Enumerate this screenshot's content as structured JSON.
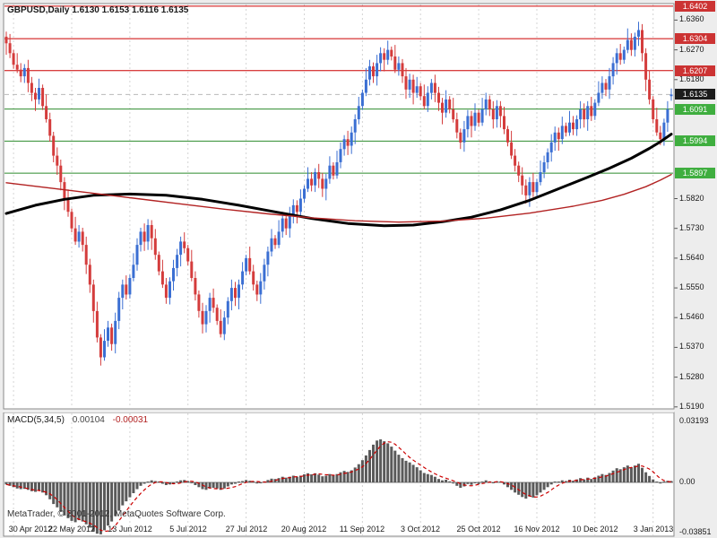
{
  "header": {
    "title": "GBPUSD,Daily 1.6130 1.6153 1.6116 1.6135"
  },
  "footer": {
    "watermark": "MetaTrader, © 2001-2012, MetaQuotes Software Corp."
  },
  "colors": {
    "bull": "#3b6fd3",
    "bear": "#d43c3c",
    "resistance": "#cc0000",
    "support": "#2e8b2e",
    "res_label_bg": "#cc3333",
    "sup_label_bg": "#3fae3f",
    "current_label_bg": "#1c1c1c",
    "ma_thick": "#000000",
    "ma_thin": "#b22222",
    "grid": "#d4d4d4",
    "histogram": "#5a5a5a",
    "signal": "#cc0000",
    "axis_text": "#1a1a1a",
    "panel_bg": "#ffffff",
    "window_bg": "#ededed",
    "frame": "#8a8a8a",
    "bid_line": "#b9b9b9"
  },
  "chart_data": [
    {
      "type": "candlestick",
      "title": "GBPUSD,Daily 1.6130 1.6153 1.6116 1.6135",
      "symbol": "GBPUSD",
      "timeframe": "Daily",
      "ohlc_current": {
        "open": 1.613,
        "high": 1.6153,
        "low": 1.6116,
        "close": 1.6135
      },
      "ylim": [
        1.5184,
        1.641
      ],
      "first_open": 1.631,
      "wick_pattern": [
        0.0015,
        0.0028,
        0.001,
        0.0035,
        0.002,
        0.0012,
        0.0025,
        0.0018
      ],
      "closes": [
        1.629,
        1.626,
        1.6225,
        1.621,
        1.619,
        1.6215,
        1.617,
        1.614,
        1.612,
        1.6155,
        1.61,
        1.606,
        1.601,
        1.595,
        1.592,
        1.587,
        1.582,
        1.578,
        1.573,
        1.569,
        1.572,
        1.568,
        1.562,
        1.556,
        1.548,
        1.54,
        1.534,
        1.539,
        1.543,
        1.538,
        1.545,
        1.552,
        1.556,
        1.553,
        1.558,
        1.562,
        1.568,
        1.572,
        1.569,
        1.574,
        1.57,
        1.565,
        1.56,
        1.556,
        1.552,
        1.557,
        1.561,
        1.565,
        1.569,
        1.567,
        1.563,
        1.558,
        1.553,
        1.548,
        1.544,
        1.548,
        1.552,
        1.549,
        1.545,
        1.541,
        1.546,
        1.551,
        1.555,
        1.552,
        1.556,
        1.56,
        1.564,
        1.56,
        1.556,
        1.553,
        1.557,
        1.562,
        1.566,
        1.57,
        1.568,
        1.572,
        1.576,
        1.573,
        1.577,
        1.58,
        1.578,
        1.582,
        1.585,
        1.588,
        1.586,
        1.59,
        1.588,
        1.585,
        1.588,
        1.592,
        1.589,
        1.593,
        1.597,
        1.6,
        1.598,
        1.602,
        1.606,
        1.61,
        1.614,
        1.618,
        1.622,
        1.619,
        1.623,
        1.626,
        1.624,
        1.627,
        1.625,
        1.621,
        1.623,
        1.619,
        1.615,
        1.618,
        1.614,
        1.616,
        1.613,
        1.61,
        1.614,
        1.617,
        1.614,
        1.611,
        1.608,
        1.612,
        1.609,
        1.606,
        1.602,
        1.599,
        1.603,
        1.607,
        1.604,
        1.608,
        1.605,
        1.609,
        1.612,
        1.609,
        1.606,
        1.61,
        1.607,
        1.603,
        1.599,
        1.595,
        1.592,
        1.589,
        1.586,
        1.583,
        1.587,
        1.584,
        1.587,
        1.59,
        1.593,
        1.596,
        1.599,
        1.602,
        1.6,
        1.604,
        1.602,
        1.605,
        1.603,
        1.606,
        1.609,
        1.606,
        1.61,
        1.607,
        1.611,
        1.614,
        1.617,
        1.615,
        1.619,
        1.623,
        1.626,
        1.624,
        1.627,
        1.63,
        1.627,
        1.631,
        1.633,
        1.626,
        1.618,
        1.612,
        1.606,
        1.602,
        1.6,
        1.605,
        1.609,
        1.6135
      ],
      "overrides": {
        "26": {
          "l": 1.5315
        },
        "174": {
          "h": 1.6355
        },
        "183": {
          "o": 1.613,
          "h": 1.6153,
          "l": 1.6116,
          "c": 1.6135
        }
      },
      "y_ticks": [
        {
          "v": 1.636,
          "label": "1.6360"
        },
        {
          "v": 1.627,
          "label": "1.6270"
        },
        {
          "v": 1.618,
          "label": "1.6180"
        },
        {
          "v": 1.582,
          "label": "1.5820"
        },
        {
          "v": 1.573,
          "label": "1.5730"
        },
        {
          "v": 1.564,
          "label": "1.5640"
        },
        {
          "v": 1.555,
          "label": "1.5550"
        },
        {
          "v": 1.546,
          "label": "1.5460"
        },
        {
          "v": 1.537,
          "label": "1.5370"
        },
        {
          "v": 1.528,
          "label": "1.5280"
        },
        {
          "v": 1.519,
          "label": "1.5190"
        }
      ],
      "x_labels": [
        {
          "i": 2,
          "label": "30 Apr 2012"
        },
        {
          "i": 18,
          "label": "22 May 2012"
        },
        {
          "i": 34,
          "label": "13 Jun 2012"
        },
        {
          "i": 50,
          "label": "5 Jul 2012"
        },
        {
          "i": 66,
          "label": "27 Jul 2012"
        },
        {
          "i": 82,
          "label": "20 Aug 2012"
        },
        {
          "i": 98,
          "label": "11 Sep 2012"
        },
        {
          "i": 114,
          "label": "3 Oct 2012"
        },
        {
          "i": 130,
          "label": "25 Oct 2012"
        },
        {
          "i": 146,
          "label": "16 Nov 2012"
        },
        {
          "i": 162,
          "label": "10 Dec 2012"
        },
        {
          "i": 178,
          "label": "3 Jan 2013"
        }
      ],
      "levels": {
        "resistance": [
          {
            "v": 1.6402,
            "label": "1.6402"
          },
          {
            "v": 1.6304,
            "label": "1.6304"
          },
          {
            "v": 1.6207,
            "label": "1.6207"
          }
        ],
        "support": [
          {
            "v": 1.6091,
            "label": "1.6091"
          },
          {
            "v": 1.5994,
            "label": "1.5994"
          },
          {
            "v": 1.5897,
            "label": "1.5897"
          }
        ],
        "current": {
          "v": 1.6135,
          "label": "1.6135"
        }
      },
      "moving_averages": [
        {
          "name": "ma-thick-black",
          "width": 3,
          "color_key": "ma_thick",
          "points": [
            [
              0,
              1.5775
            ],
            [
              8,
              1.58
            ],
            [
              16,
              1.5818
            ],
            [
              24,
              1.583
            ],
            [
              34,
              1.5834
            ],
            [
              44,
              1.583
            ],
            [
              54,
              1.5818
            ],
            [
              64,
              1.58
            ],
            [
              74,
              1.578
            ],
            [
              84,
              1.576
            ],
            [
              94,
              1.5745
            ],
            [
              104,
              1.5738
            ],
            [
              112,
              1.574
            ],
            [
              120,
              1.575
            ],
            [
              128,
              1.5764
            ],
            [
              136,
              1.5786
            ],
            [
              144,
              1.5815
            ],
            [
              152,
              1.585
            ],
            [
              160,
              1.5885
            ],
            [
              166,
              1.5912
            ],
            [
              172,
              1.5942
            ],
            [
              177,
              1.5972
            ],
            [
              180,
              1.5992
            ],
            [
              183,
              1.6015
            ]
          ]
        },
        {
          "name": "ma-thin-red",
          "width": 1.4,
          "color_key": "ma_thin",
          "points": [
            [
              0,
              1.5868
            ],
            [
              12,
              1.5852
            ],
            [
              24,
              1.5836
            ],
            [
              36,
              1.582
            ],
            [
              48,
              1.5804
            ],
            [
              60,
              1.5788
            ],
            [
              72,
              1.5774
            ],
            [
              84,
              1.5762
            ],
            [
              96,
              1.5753
            ],
            [
              108,
              1.5749
            ],
            [
              120,
              1.5752
            ],
            [
              132,
              1.5761
            ],
            [
              144,
              1.5776
            ],
            [
              156,
              1.5797
            ],
            [
              164,
              1.5815
            ],
            [
              170,
              1.5833
            ],
            [
              176,
              1.5856
            ],
            [
              180,
              1.5876
            ],
            [
              183,
              1.5893
            ]
          ]
        }
      ]
    },
    {
      "type": "bar",
      "name": "MACD(5,34,5)",
      "value_main": "0.00104",
      "value_signal": "-0.00031",
      "signal_period": 5,
      "ylim": [
        -0.03851,
        0.03193
      ],
      "scale_labels": [
        {
          "v": 0.03193,
          "label": "0.03193"
        },
        {
          "v": 0.0,
          "label": "0.00"
        },
        {
          "v": -0.03851,
          "label": "-0.03851"
        }
      ],
      "values": [
        -0.0015,
        -0.0025,
        -0.0035,
        -0.0045,
        -0.005,
        -0.0048,
        -0.0055,
        -0.0065,
        -0.007,
        -0.006,
        -0.0075,
        -0.0095,
        -0.0125,
        -0.016,
        -0.0185,
        -0.0215,
        -0.0245,
        -0.0265,
        -0.0285,
        -0.0295,
        -0.028,
        -0.029,
        -0.031,
        -0.0335,
        -0.036,
        -0.038,
        -0.0385,
        -0.0355,
        -0.032,
        -0.029,
        -0.025,
        -0.021,
        -0.017,
        -0.014,
        -0.011,
        -0.008,
        -0.005,
        -0.0025,
        -0.001,
        0.0005,
        0.0015,
        0.001,
        0.0,
        -0.001,
        -0.002,
        -0.0015,
        -0.0005,
        0.0005,
        0.0015,
        0.0018,
        0.001,
        -0.0005,
        -0.002,
        -0.0035,
        -0.005,
        -0.0055,
        -0.0045,
        -0.004,
        -0.0045,
        -0.0055,
        -0.0045,
        -0.003,
        -0.0015,
        -0.001,
        0.0,
        0.001,
        0.0018,
        0.0012,
        0.0,
        -0.0008,
        -0.0002,
        0.0008,
        0.0018,
        0.0028,
        0.0025,
        0.0032,
        0.0042,
        0.0035,
        0.0042,
        0.005,
        0.0042,
        0.005,
        0.006,
        0.0068,
        0.006,
        0.0068,
        0.0058,
        0.0045,
        0.005,
        0.0062,
        0.0052,
        0.0062,
        0.0075,
        0.0085,
        0.0078,
        0.009,
        0.011,
        0.0135,
        0.0165,
        0.02,
        0.024,
        0.028,
        0.031,
        0.0319,
        0.0305,
        0.029,
        0.0265,
        0.0235,
        0.0205,
        0.018,
        0.016,
        0.0148,
        0.013,
        0.0112,
        0.009,
        0.007,
        0.0062,
        0.0055,
        0.0042,
        0.0025,
        0.0015,
        0.002,
        0.0008,
        -0.0008,
        -0.0025,
        -0.004,
        -0.003,
        -0.0012,
        -0.0018,
        -0.0002,
        -0.0012,
        0.0002,
        0.0015,
        0.0008,
        -0.0005,
        0.0008,
        0.0,
        -0.0015,
        -0.0035,
        -0.0055,
        -0.0075,
        -0.0092,
        -0.0108,
        -0.012,
        -0.0105,
        -0.0112,
        -0.0095,
        -0.0075,
        -0.0055,
        -0.0035,
        -0.0015,
        0.0005,
        0.0,
        0.0015,
        0.001,
        0.002,
        0.0012,
        0.0022,
        0.0032,
        0.0022,
        0.0035,
        0.0025,
        0.0038,
        0.005,
        0.0062,
        0.0055,
        0.007,
        0.0088,
        0.0105,
        0.0098,
        0.0112,
        0.0125,
        0.0112,
        0.0125,
        0.0138,
        0.0108,
        0.0075,
        0.0048,
        0.0022,
        0.0005,
        -0.0008,
        0.0002,
        0.0012,
        0.00104
      ]
    }
  ]
}
